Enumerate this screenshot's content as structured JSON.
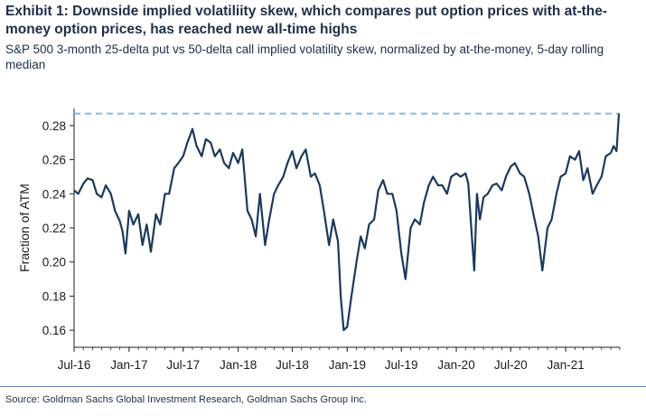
{
  "header": {
    "title": "Exhibit 1: Downside implied volatiliity skew, which compares put option prices with at-the-money option prices, has reached new all-time highs",
    "subtitle": "S&P 500 3-month 25-delta put vs 50-delta call implied volatility skew, normalized by at-the-money, 5-day rolling median"
  },
  "footer": {
    "source": "Source: Goldman Sachs Global Investment Research, Goldman Sachs Group Inc."
  },
  "chart_data": {
    "type": "line",
    "title": "",
    "xlabel": "",
    "ylabel": "Fraction of ATM",
    "ylim": [
      0.15,
      0.29
    ],
    "xlim": [
      "2016-07-01",
      "2021-07-01"
    ],
    "yticks": [
      0.16,
      0.18,
      0.2,
      0.22,
      0.24,
      0.26,
      0.28
    ],
    "xticks": [
      {
        "date": "2016-07-01",
        "label": "Jul-16"
      },
      {
        "date": "2017-01-01",
        "label": "Jan-17"
      },
      {
        "date": "2017-07-01",
        "label": "Jul-17"
      },
      {
        "date": "2018-01-01",
        "label": "Jan-18"
      },
      {
        "date": "2018-07-01",
        "label": "Jul-18"
      },
      {
        "date": "2019-01-01",
        "label": "Jan-19"
      },
      {
        "date": "2019-07-01",
        "label": "Jul-19"
      },
      {
        "date": "2020-01-01",
        "label": "Jan-20"
      },
      {
        "date": "2020-07-01",
        "label": "Jul-20"
      },
      {
        "date": "2021-01-01",
        "label": "Jan-21"
      }
    ],
    "grid": false,
    "series": [
      {
        "color": "#1b3a5c",
        "x": [
          "2016-07-01",
          "2016-07-15",
          "2016-08-01",
          "2016-08-15",
          "2016-09-01",
          "2016-09-15",
          "2016-10-01",
          "2016-10-15",
          "2016-11-01",
          "2016-11-15",
          "2016-12-01",
          "2016-12-10",
          "2016-12-20",
          "2017-01-01",
          "2017-01-15",
          "2017-02-01",
          "2017-02-15",
          "2017-03-01",
          "2017-03-15",
          "2017-04-01",
          "2017-04-15",
          "2017-05-01",
          "2017-05-15",
          "2017-06-01",
          "2017-06-15",
          "2017-07-01",
          "2017-07-15",
          "2017-08-01",
          "2017-08-15",
          "2017-09-01",
          "2017-09-15",
          "2017-10-01",
          "2017-10-15",
          "2017-11-01",
          "2017-11-15",
          "2017-12-01",
          "2017-12-15",
          "2018-01-01",
          "2018-01-15",
          "2018-02-01",
          "2018-02-15",
          "2018-03-01",
          "2018-03-15",
          "2018-04-01",
          "2018-04-15",
          "2018-05-01",
          "2018-05-15",
          "2018-06-01",
          "2018-06-15",
          "2018-07-01",
          "2018-07-15",
          "2018-08-01",
          "2018-08-15",
          "2018-09-01",
          "2018-09-15",
          "2018-10-01",
          "2018-10-15",
          "2018-11-01",
          "2018-11-15",
          "2018-12-01",
          "2018-12-10",
          "2018-12-20",
          "2019-01-01",
          "2019-01-15",
          "2019-02-01",
          "2019-02-15",
          "2019-03-01",
          "2019-03-15",
          "2019-04-01",
          "2019-04-15",
          "2019-05-01",
          "2019-05-15",
          "2019-06-01",
          "2019-06-15",
          "2019-07-01",
          "2019-07-15",
          "2019-08-01",
          "2019-08-15",
          "2019-09-01",
          "2019-09-15",
          "2019-10-01",
          "2019-10-15",
          "2019-11-01",
          "2019-11-15",
          "2019-12-01",
          "2019-12-15",
          "2020-01-01",
          "2020-01-15",
          "2020-02-01",
          "2020-02-10",
          "2020-02-20",
          "2020-03-01",
          "2020-03-10",
          "2020-03-20",
          "2020-04-01",
          "2020-04-15",
          "2020-05-01",
          "2020-05-15",
          "2020-06-01",
          "2020-06-15",
          "2020-07-01",
          "2020-07-15",
          "2020-08-01",
          "2020-08-15",
          "2020-09-01",
          "2020-09-15",
          "2020-10-01",
          "2020-10-15",
          "2020-11-01",
          "2020-11-15",
          "2020-12-01",
          "2020-12-15",
          "2021-01-01",
          "2021-01-15",
          "2021-02-01",
          "2021-02-15",
          "2021-03-01",
          "2021-03-15",
          "2021-04-01",
          "2021-04-15",
          "2021-05-01",
          "2021-05-15",
          "2021-06-01",
          "2021-06-10",
          "2021-06-20",
          "2021-06-28"
        ],
        "y": [
          0.242,
          0.24,
          0.246,
          0.249,
          0.248,
          0.24,
          0.238,
          0.245,
          0.24,
          0.23,
          0.224,
          0.218,
          0.205,
          0.23,
          0.222,
          0.228,
          0.21,
          0.222,
          0.206,
          0.228,
          0.222,
          0.24,
          0.24,
          0.255,
          0.258,
          0.262,
          0.27,
          0.278,
          0.268,
          0.262,
          0.272,
          0.27,
          0.262,
          0.266,
          0.258,
          0.255,
          0.264,
          0.258,
          0.266,
          0.23,
          0.225,
          0.215,
          0.24,
          0.21,
          0.225,
          0.24,
          0.245,
          0.25,
          0.258,
          0.265,
          0.255,
          0.262,
          0.266,
          0.25,
          0.252,
          0.245,
          0.23,
          0.21,
          0.225,
          0.212,
          0.18,
          0.16,
          0.162,
          0.18,
          0.2,
          0.215,
          0.208,
          0.222,
          0.225,
          0.242,
          0.248,
          0.24,
          0.24,
          0.23,
          0.205,
          0.19,
          0.22,
          0.225,
          0.222,
          0.235,
          0.245,
          0.25,
          0.245,
          0.245,
          0.24,
          0.25,
          0.252,
          0.25,
          0.252,
          0.246,
          0.22,
          0.195,
          0.24,
          0.225,
          0.238,
          0.24,
          0.245,
          0.246,
          0.242,
          0.25,
          0.256,
          0.258,
          0.252,
          0.25,
          0.24,
          0.228,
          0.215,
          0.195,
          0.22,
          0.225,
          0.24,
          0.25,
          0.252,
          0.262,
          0.26,
          0.265,
          0.248,
          0.255,
          0.24,
          0.245,
          0.25,
          0.262,
          0.264,
          0.268,
          0.265,
          0.287
        ]
      }
    ],
    "reference_line": {
      "y": 0.287,
      "style": "dashed",
      "color": "#8ab8e8"
    }
  }
}
